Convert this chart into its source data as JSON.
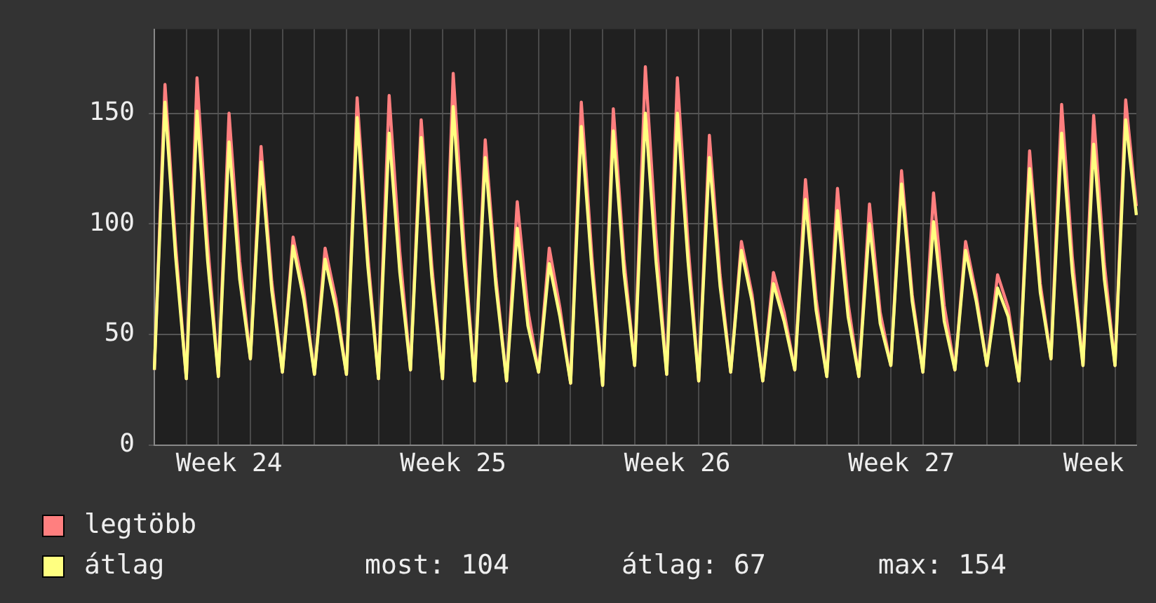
{
  "chart_data": {
    "type": "line",
    "categories": [
      null,
      null,
      null,
      null,
      null,
      null,
      null,
      "Week 24",
      null,
      null,
      null,
      null,
      null,
      null,
      null,
      null,
      null,
      null,
      null,
      null,
      null,
      null,
      null,
      null,
      null,
      null,
      null,
      null,
      "Week 25",
      null,
      null,
      null,
      null,
      null,
      null,
      null,
      null,
      null,
      null,
      null,
      null,
      null,
      null,
      null,
      null,
      null,
      null,
      null,
      null,
      "Week 26",
      null,
      null,
      null,
      null,
      null,
      null,
      null,
      null,
      null,
      null,
      null,
      null,
      null,
      null,
      null,
      null,
      null,
      null,
      null,
      null,
      "Week 27",
      null,
      null,
      null,
      null,
      null,
      null,
      null,
      null,
      null,
      null,
      null,
      null,
      null,
      null,
      null,
      null,
      null,
      "Week",
      null,
      null,
      null,
      null
    ],
    "series": [
      {
        "name": "legtöbb",
        "color": "#ff7f7f",
        "values": [
          34,
          163,
          90,
          30,
          166,
          91,
          31,
          150,
          83,
          39,
          135,
          74,
          33,
          94,
          70,
          32,
          89,
          66,
          32,
          157,
          86,
          30,
          158,
          87,
          34,
          147,
          81,
          30,
          168,
          92,
          29,
          138,
          76,
          29,
          110,
          61,
          33,
          89,
          62,
          28,
          155,
          85,
          27,
          152,
          84,
          36,
          171,
          94,
          32,
          166,
          91,
          29,
          140,
          77,
          33,
          92,
          68,
          29,
          78,
          60,
          34,
          120,
          66,
          31,
          116,
          64,
          31,
          109,
          60,
          36,
          124,
          68,
          33,
          114,
          63,
          34,
          92,
          68,
          36,
          77,
          62,
          29,
          133,
          73,
          39,
          154,
          85,
          36,
          149,
          82,
          36,
          156,
          108
        ]
      },
      {
        "name": "átlag",
        "color": "#ffff80",
        "values": [
          34,
          155,
          85,
          30,
          151,
          83,
          31,
          137,
          75,
          39,
          128,
          70,
          33,
          90,
          66,
          32,
          84,
          62,
          32,
          148,
          81,
          30,
          141,
          78,
          34,
          139,
          76,
          30,
          153,
          84,
          29,
          130,
          72,
          29,
          98,
          54,
          33,
          82,
          58,
          28,
          144,
          79,
          27,
          142,
          78,
          36,
          150,
          83,
          32,
          150,
          83,
          29,
          130,
          72,
          33,
          88,
          65,
          29,
          73,
          56,
          34,
          111,
          61,
          31,
          106,
          58,
          31,
          100,
          55,
          36,
          118,
          65,
          33,
          101,
          56,
          34,
          88,
          65,
          36,
          71,
          58,
          29,
          125,
          69,
          39,
          141,
          78,
          36,
          136,
          75,
          36,
          147,
          104
        ]
      }
    ],
    "ylim": [
      0,
      188
    ],
    "yticks": [
      0,
      50,
      100,
      150
    ],
    "grid": true,
    "legend": "bottom",
    "annotations": [
      "most: 104",
      "átlag: 67",
      "max: 154"
    ]
  }
}
